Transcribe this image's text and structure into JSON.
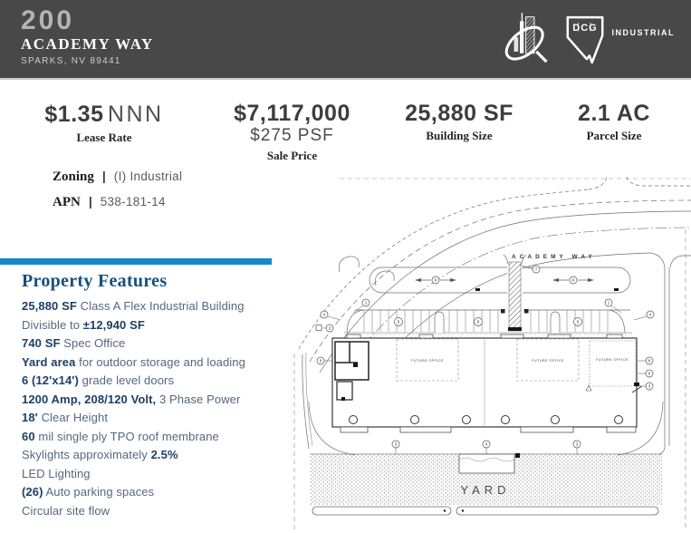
{
  "header": {
    "number": "200",
    "street": "ACADEMY WAY",
    "city": "SPARKS, NV 89441",
    "logo_dcg_text": "DCG",
    "logo_dcg_industrial": "INDUSTRIAL"
  },
  "stats": [
    {
      "value": "$1.35",
      "value_light": "NNN",
      "label": "Lease Rate"
    },
    {
      "value": "$7,117,000",
      "value2": "$275 PSF",
      "label": "Sale Price"
    },
    {
      "value": "25,880 SF",
      "label": "Building Size"
    },
    {
      "value": "2.1 AC",
      "label": "Parcel Size"
    }
  ],
  "details": [
    {
      "label": "Zoning",
      "separator": "|",
      "value": "(I) Industrial"
    },
    {
      "label": "APN",
      "separator": "|",
      "value": "538-181-14"
    }
  ],
  "features": {
    "title": "Property Features",
    "items": [
      [
        {
          "t": "25,880 SF",
          "b": true
        },
        {
          "t": " Class A Flex Industrial Building",
          "b": false
        }
      ],
      [
        {
          "t": "Divisible to ",
          "b": false
        },
        {
          "t": "±12,940 SF",
          "b": true
        }
      ],
      [
        {
          "t": "740 SF",
          "b": true
        },
        {
          "t": " Spec Office",
          "b": false
        }
      ],
      [
        {
          "t": "Yard area",
          "b": true
        },
        {
          "t": " for outdoor storage and loading",
          "b": false
        }
      ],
      [
        {
          "t": "6 (12'x14')",
          "b": true
        },
        {
          "t": " grade level doors",
          "b": false
        }
      ],
      [
        {
          "t": "1200 Amp, 208/120 Volt,",
          "b": true
        },
        {
          "t": " 3 Phase Power",
          "b": false
        }
      ],
      [
        {
          "t": "18'",
          "b": true
        },
        {
          "t": " Clear Height",
          "b": false
        }
      ],
      [
        {
          "t": "60",
          "b": true
        },
        {
          "t": " mil single ply TPO roof membrane",
          "b": false
        }
      ],
      [
        {
          "t": "Skylights approximately ",
          "b": false
        },
        {
          "t": "2.5%",
          "b": true
        }
      ],
      [
        {
          "t": "LED Lighting",
          "b": false
        }
      ],
      [
        {
          "t": "(26)",
          "b": true
        },
        {
          "t": " Auto parking spaces",
          "b": false
        }
      ],
      [
        {
          "t": "Circular site flow",
          "b": false
        }
      ]
    ]
  },
  "siteplan": {
    "road_label": "ACADEMY WAY",
    "yard_label": "YARD",
    "future_office_label": "FUTURE OFFICE",
    "callouts": [
      "1",
      "4",
      "5",
      "8",
      "5",
      "1",
      "4",
      "7",
      "2",
      "6",
      "6",
      "3",
      "4",
      "3",
      "8",
      "9",
      "3",
      "9"
    ]
  },
  "colors": {
    "header_bg": "#484848",
    "accent_blue": "#1787c8",
    "heading_navy": "#14507f",
    "feature_bold": "#1d3f66",
    "feature_text": "#54687e"
  }
}
